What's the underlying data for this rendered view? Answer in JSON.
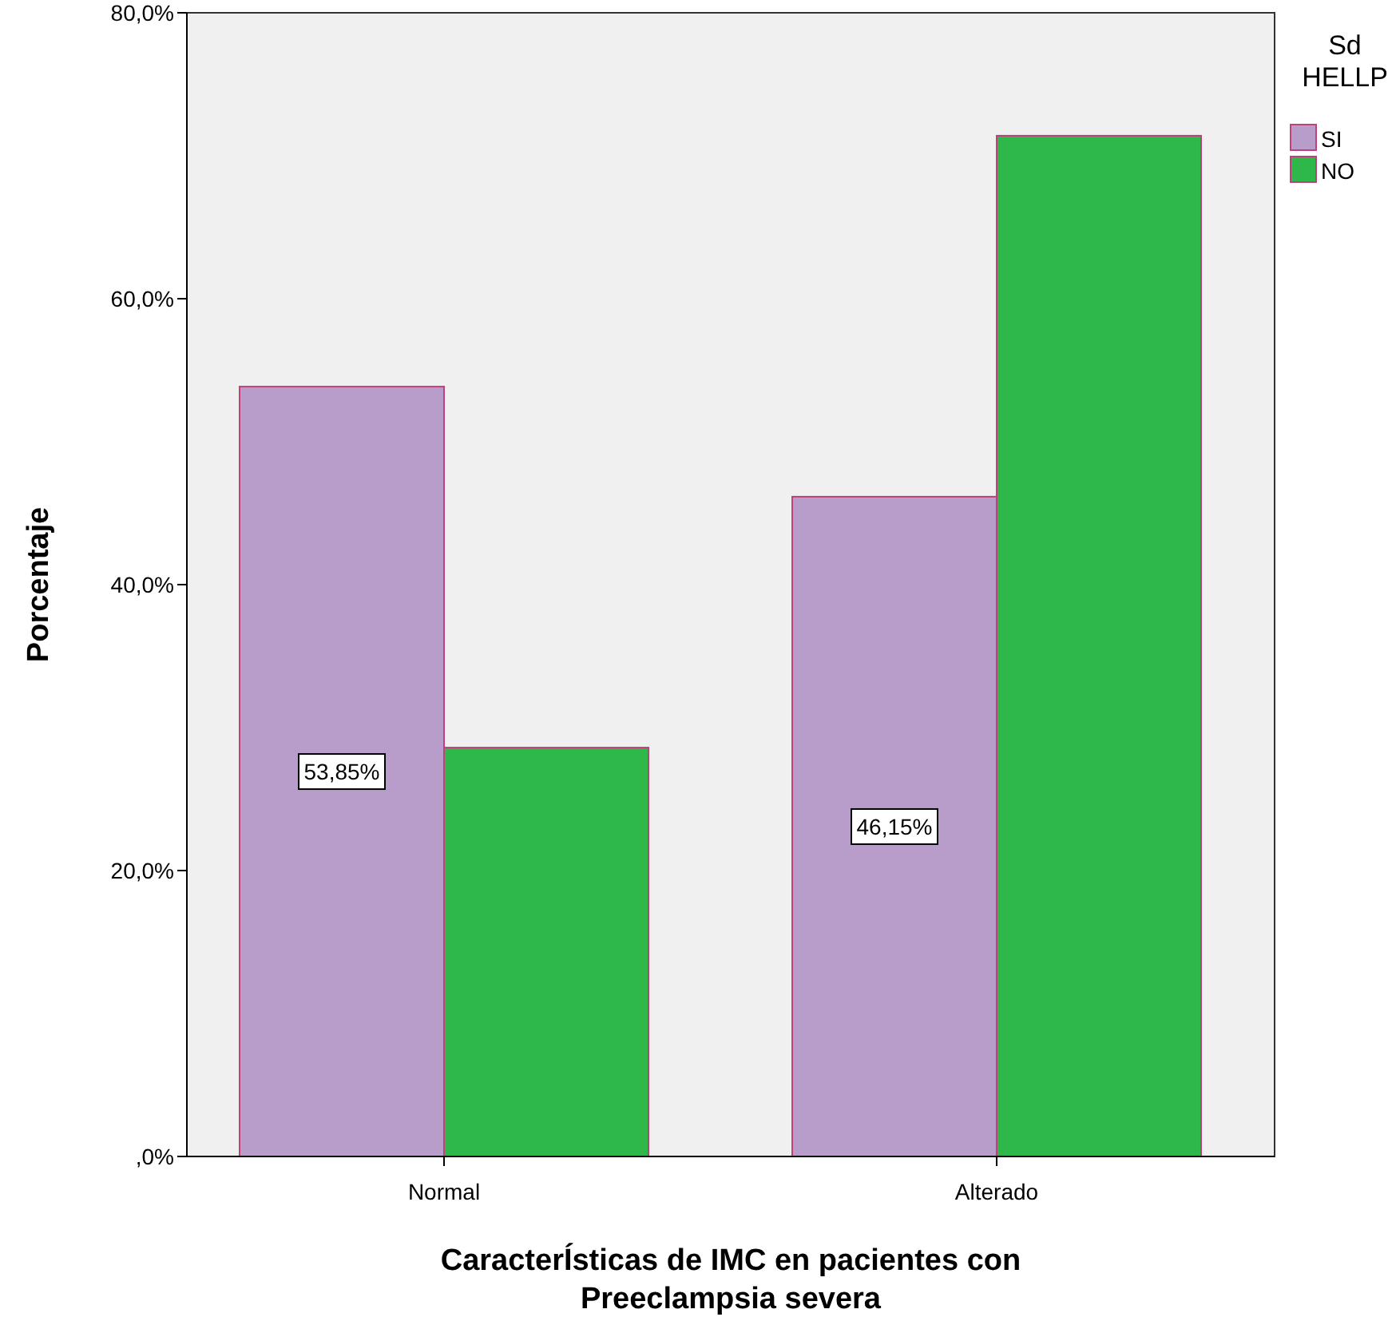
{
  "chart_data": {
    "type": "bar",
    "xlabel": "CaracterÍsticas de IMC en pacientes con Preeclampsia severa",
    "ylabel": "Porcentaje",
    "legend_title": "Sd HELLP",
    "categories": [
      "Normal",
      "Alterado"
    ],
    "series": [
      {
        "name": "SI",
        "color": "#b89cca",
        "values": [
          53.85,
          46.15
        ],
        "value_labels": [
          "53,85%",
          "46,15%"
        ]
      },
      {
        "name": "NO",
        "color": "#2fb84a",
        "values": [
          28.6,
          71.4
        ]
      }
    ],
    "ylim": [
      0,
      80
    ],
    "yticks": [
      {
        "value": 0,
        "label": ",0%"
      },
      {
        "value": 20,
        "label": "20,0%"
      },
      {
        "value": 40,
        "label": "40,0%"
      },
      {
        "value": 60,
        "label": "60,0%"
      },
      {
        "value": 80,
        "label": "80,0%"
      }
    ],
    "grid": false,
    "legend": "right"
  }
}
